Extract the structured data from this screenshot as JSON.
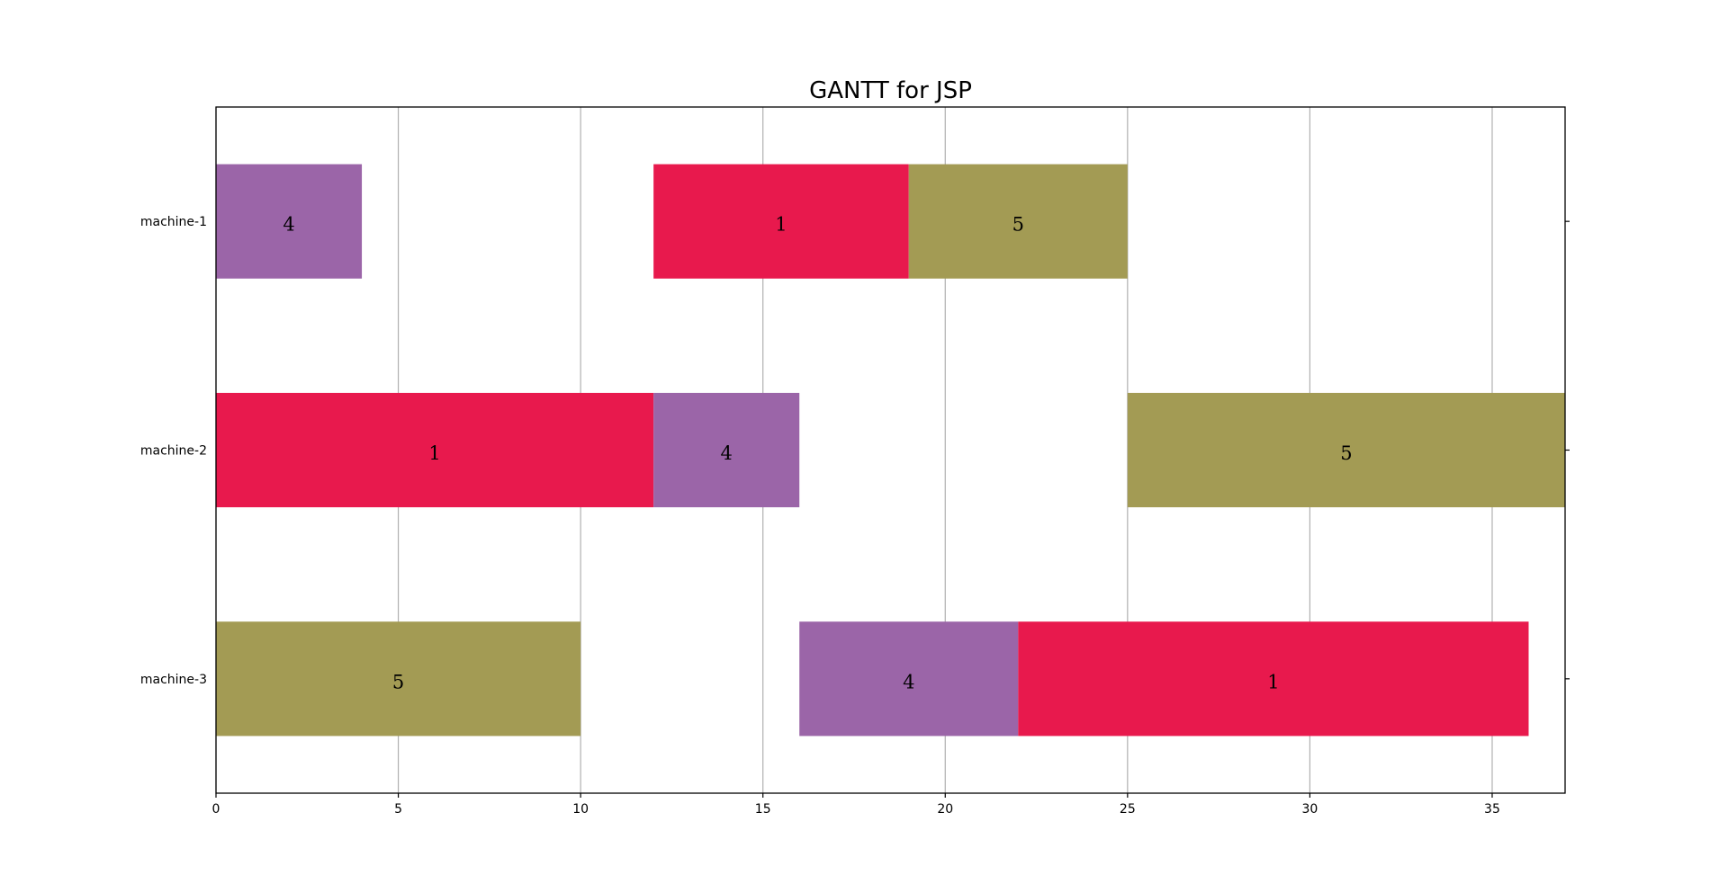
{
  "chart_data": {
    "type": "gantt",
    "title": "GANTT for JSP",
    "xlabel": "",
    "ylabel": "",
    "xlim": [
      0,
      37
    ],
    "xticks": [
      0,
      5,
      10,
      15,
      20,
      25,
      30,
      35
    ],
    "grid": "vertical",
    "machines": [
      "machine-1",
      "machine-2",
      "machine-3"
    ],
    "job_colors": {
      "1": "#e8194d",
      "4": "#9b65a8",
      "5": "#a39b54"
    },
    "tasks": [
      {
        "machine": "machine-1",
        "job": "4",
        "start": 0,
        "end": 4
      },
      {
        "machine": "machine-1",
        "job": "1",
        "start": 12,
        "end": 19
      },
      {
        "machine": "machine-1",
        "job": "5",
        "start": 19,
        "end": 25
      },
      {
        "machine": "machine-2",
        "job": "1",
        "start": 0,
        "end": 12
      },
      {
        "machine": "machine-2",
        "job": "4",
        "start": 12,
        "end": 16
      },
      {
        "machine": "machine-2",
        "job": "5",
        "start": 25,
        "end": 37
      },
      {
        "machine": "machine-3",
        "job": "5",
        "start": 0,
        "end": 10
      },
      {
        "machine": "machine-3",
        "job": "4",
        "start": 16,
        "end": 22
      },
      {
        "machine": "machine-3",
        "job": "1",
        "start": 22,
        "end": 36
      }
    ]
  }
}
